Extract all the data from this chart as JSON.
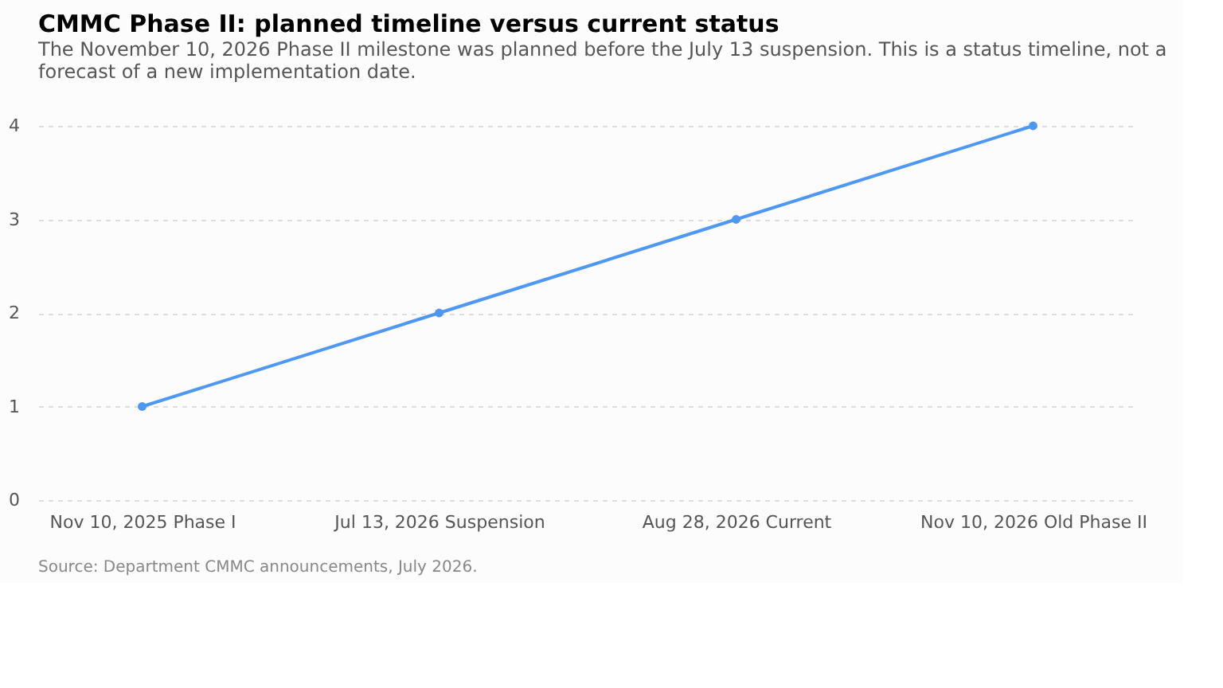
{
  "chart_data": {
    "type": "line",
    "title": "CMMC Phase II: planned timeline versus current status",
    "subtitle": "The November 10, 2026 Phase II milestone was planned before the July 13 suspension. This is a status timeline, not a forecast of a new implementation date.",
    "categories": [
      "Nov 10, 2025 Phase I",
      "Jul 13, 2026 Suspension",
      "Aug 28, 2026 Current",
      "Nov 10, 2026 Old Phase II"
    ],
    "series": [
      {
        "color": "#4e97f2",
        "values": [
          1,
          2,
          3,
          4
        ]
      }
    ],
    "ylim": [
      0,
      4
    ],
    "yticks": [
      0,
      1,
      2,
      3,
      4
    ],
    "grid": "y",
    "marker": "circle",
    "line_style": "solid",
    "legend": false,
    "annotations": [
      "Source: Department CMMC announcements, July 2026."
    ]
  }
}
